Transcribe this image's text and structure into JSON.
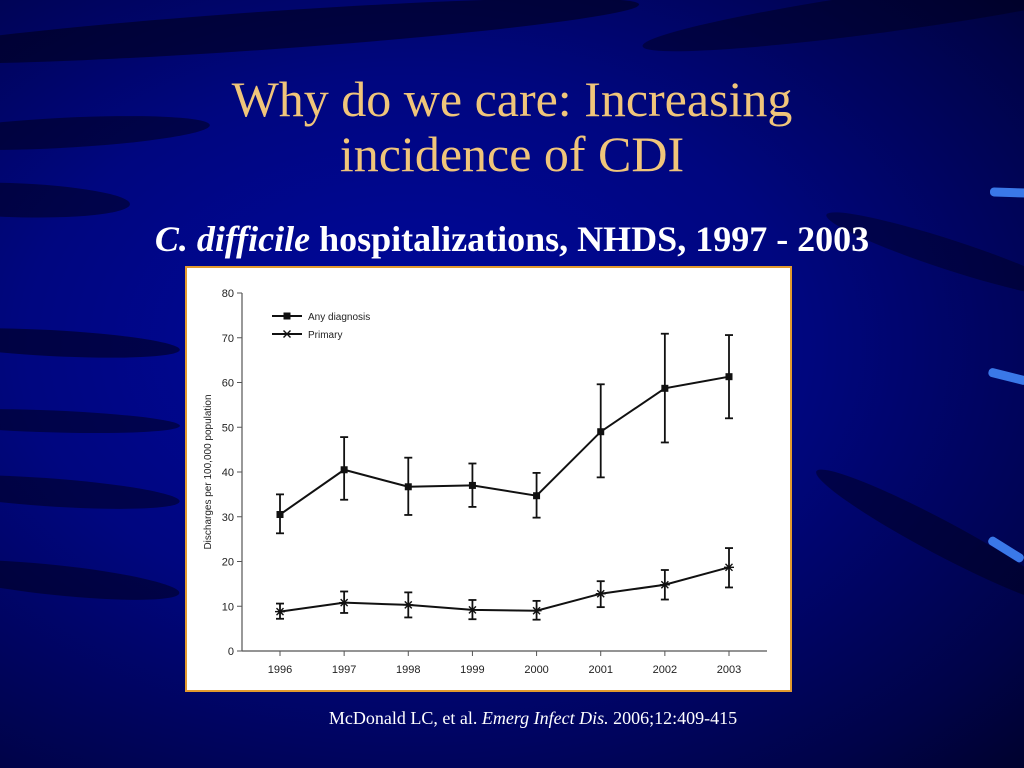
{
  "slide": {
    "title_line1": "Why do we care:  Increasing",
    "title_line2": "incidence of CDI",
    "subtitle_italic": "C. difficile",
    "subtitle_rest": " hospitalizations, NHDS, 1997 - 2003",
    "citation_prefix": "McDonald LC, et al. ",
    "citation_journal": "Emerg Infect Dis.",
    "citation_suffix": " 2006;12:409-415"
  },
  "colors": {
    "title": "#f0c57a",
    "frame": "#e39a2e",
    "series": "#111111"
  },
  "chart_data": {
    "type": "line",
    "x": [
      "1996",
      "1997",
      "1998",
      "1999",
      "2000",
      "2001",
      "2002",
      "2003"
    ],
    "ylabel": "Discharges per 100,000 population",
    "xlabel": "",
    "ylim": [
      0,
      80
    ],
    "yticks": [
      0,
      10,
      20,
      30,
      40,
      50,
      60,
      70,
      80
    ],
    "legend_position": "top-left",
    "grid": false,
    "series": [
      {
        "name": "Any diagnosis",
        "marker": "square",
        "values": [
          30.5,
          40.5,
          36.7,
          37.0,
          34.7,
          49.0,
          58.7,
          61.3
        ],
        "err_low": [
          26.3,
          33.8,
          30.4,
          32.2,
          29.8,
          38.8,
          46.6,
          52.0
        ],
        "err_high": [
          35.0,
          47.8,
          43.2,
          41.9,
          39.8,
          59.6,
          70.9,
          70.6
        ]
      },
      {
        "name": "Primary",
        "marker": "star",
        "values": [
          8.8,
          10.8,
          10.3,
          9.2,
          9.0,
          12.8,
          14.8,
          18.7
        ],
        "err_low": [
          7.2,
          8.5,
          7.5,
          7.1,
          7.0,
          9.8,
          11.5,
          14.2
        ],
        "err_high": [
          10.6,
          13.3,
          13.1,
          11.4,
          11.2,
          15.6,
          18.1,
          23.0
        ]
      }
    ]
  }
}
